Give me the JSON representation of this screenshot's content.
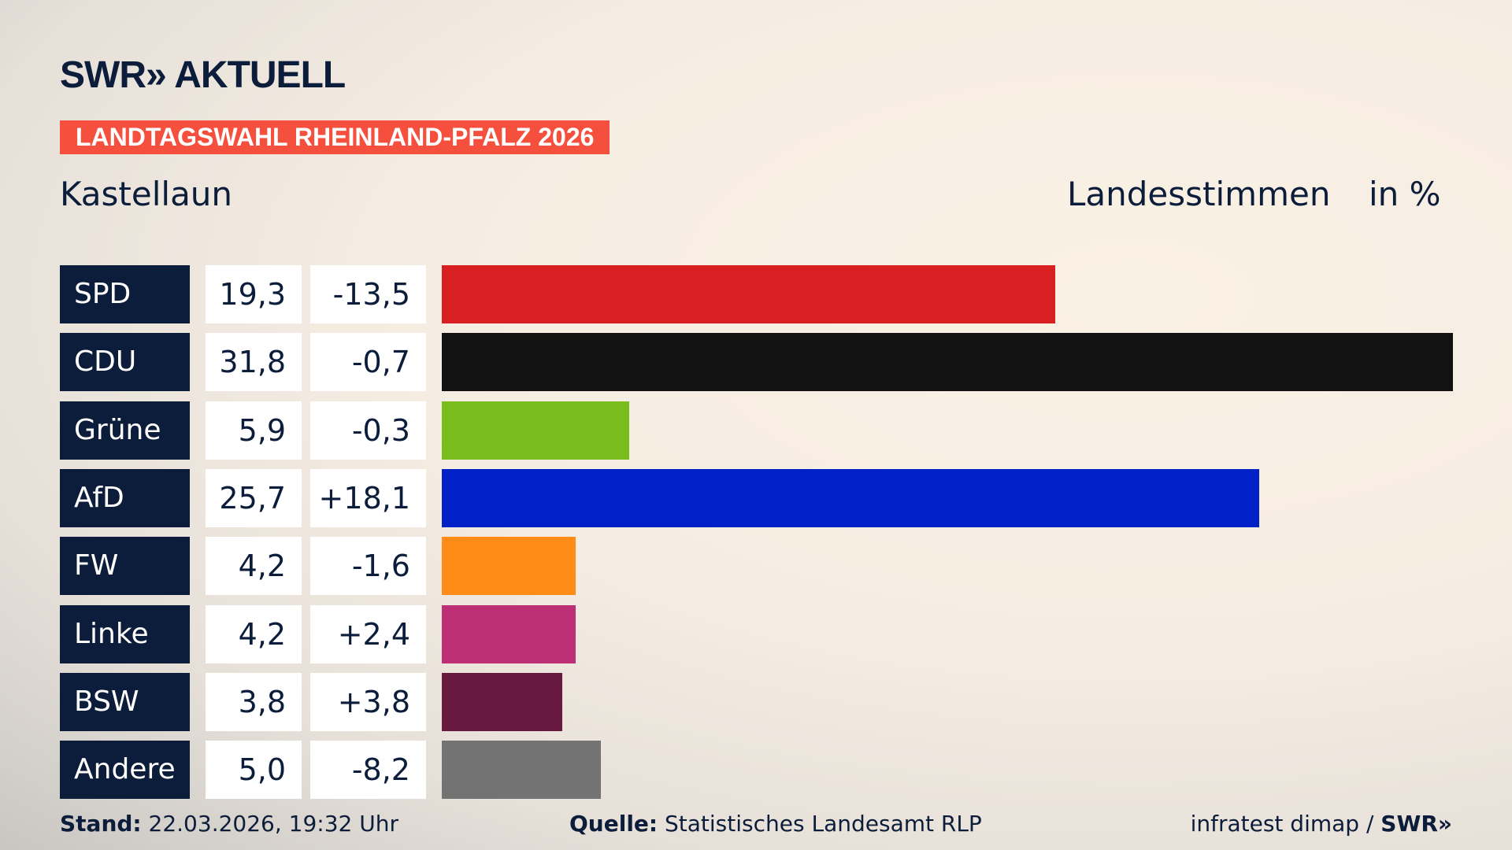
{
  "logo": "SWR» AKTUELL",
  "banner": "LANDTAGSWAHL RHEINLAND-PFALZ 2026",
  "place": "Kastellaun",
  "header": {
    "type": "Landesstimmen",
    "unit": "in %"
  },
  "chart_data": {
    "type": "bar",
    "orientation": "horizontal",
    "categories": [
      "SPD",
      "CDU",
      "Grüne",
      "AfD",
      "FW",
      "Linke",
      "BSW",
      "Andere"
    ],
    "values": [
      19.3,
      31.8,
      5.9,
      25.7,
      4.2,
      4.2,
      3.8,
      5.0
    ],
    "value_labels": [
      "19,3",
      "31,8",
      "5,9",
      "25,7",
      "4,2",
      "4,2",
      "3,8",
      "5,0"
    ],
    "diff_labels": [
      "-13,5",
      "-0,7",
      "-0,3",
      "+18,1",
      "-1,6",
      "+2,4",
      "+3,8",
      "-8,2"
    ],
    "colors": [
      "#d81f21",
      "#121212",
      "#79bd1c",
      "#0021c8",
      "#ff8c17",
      "#bd3075",
      "#67193f",
      "#737373"
    ]
  },
  "footer": {
    "stand_label": "Stand:",
    "stand_value": "22.03.2026, 19:32 Uhr",
    "source_label": "Quelle:",
    "source_value": "Statistisches Landesamt RLP",
    "credit": "infratest dimap / ",
    "credit_logo": "SWR»"
  }
}
